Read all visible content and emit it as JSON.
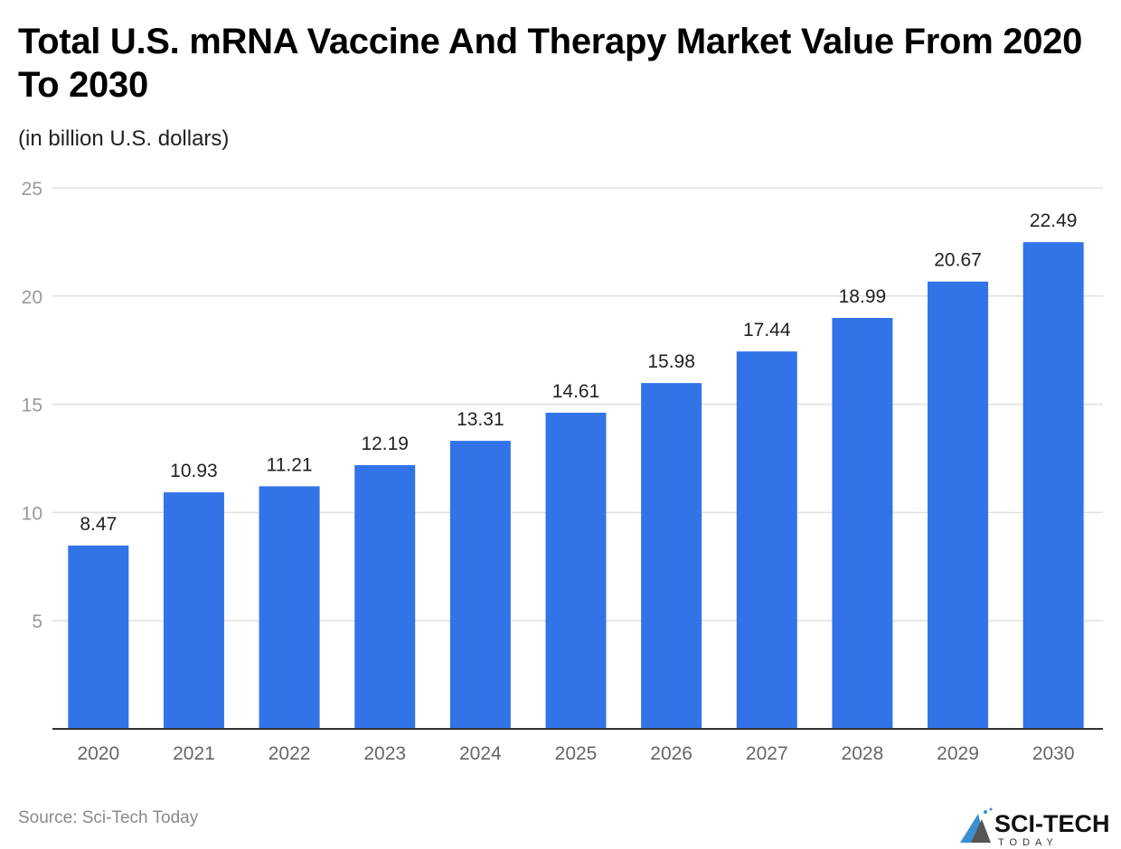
{
  "title": "Total U.S. mRNA Vaccine And Therapy Market Value From 2020 To 2030",
  "subtitle": "(in billion U.S. dollars)",
  "source": "Source: Sci-Tech Today",
  "logo": {
    "text": "SCI-TECH",
    "subtext": "TODAY"
  },
  "colors": {
    "bar": "#3274e8",
    "grid": "#e0e0e0",
    "axis": "#333333",
    "tick_label": "#999999",
    "data_label": "#222222"
  },
  "chart_data": {
    "type": "bar",
    "title": "Total U.S. mRNA Vaccine And Therapy Market Value From 2020 To 2030",
    "subtitle": "(in billion U.S. dollars)",
    "categories": [
      "2020",
      "2021",
      "2022",
      "2023",
      "2024",
      "2025",
      "2026",
      "2027",
      "2028",
      "2029",
      "2030"
    ],
    "values": [
      8.47,
      10.93,
      11.21,
      12.19,
      13.31,
      14.61,
      15.98,
      17.44,
      18.99,
      20.67,
      22.49
    ],
    "data_labels": [
      "8.47",
      "10.93",
      "11.21",
      "12.19",
      "13.31",
      "14.61",
      "15.98",
      "17.44",
      "18.99",
      "20.67",
      "22.49"
    ],
    "ylim": [
      0,
      25
    ],
    "yticks": [
      5,
      10,
      15,
      20,
      25
    ],
    "grid": true,
    "legend": "none"
  }
}
